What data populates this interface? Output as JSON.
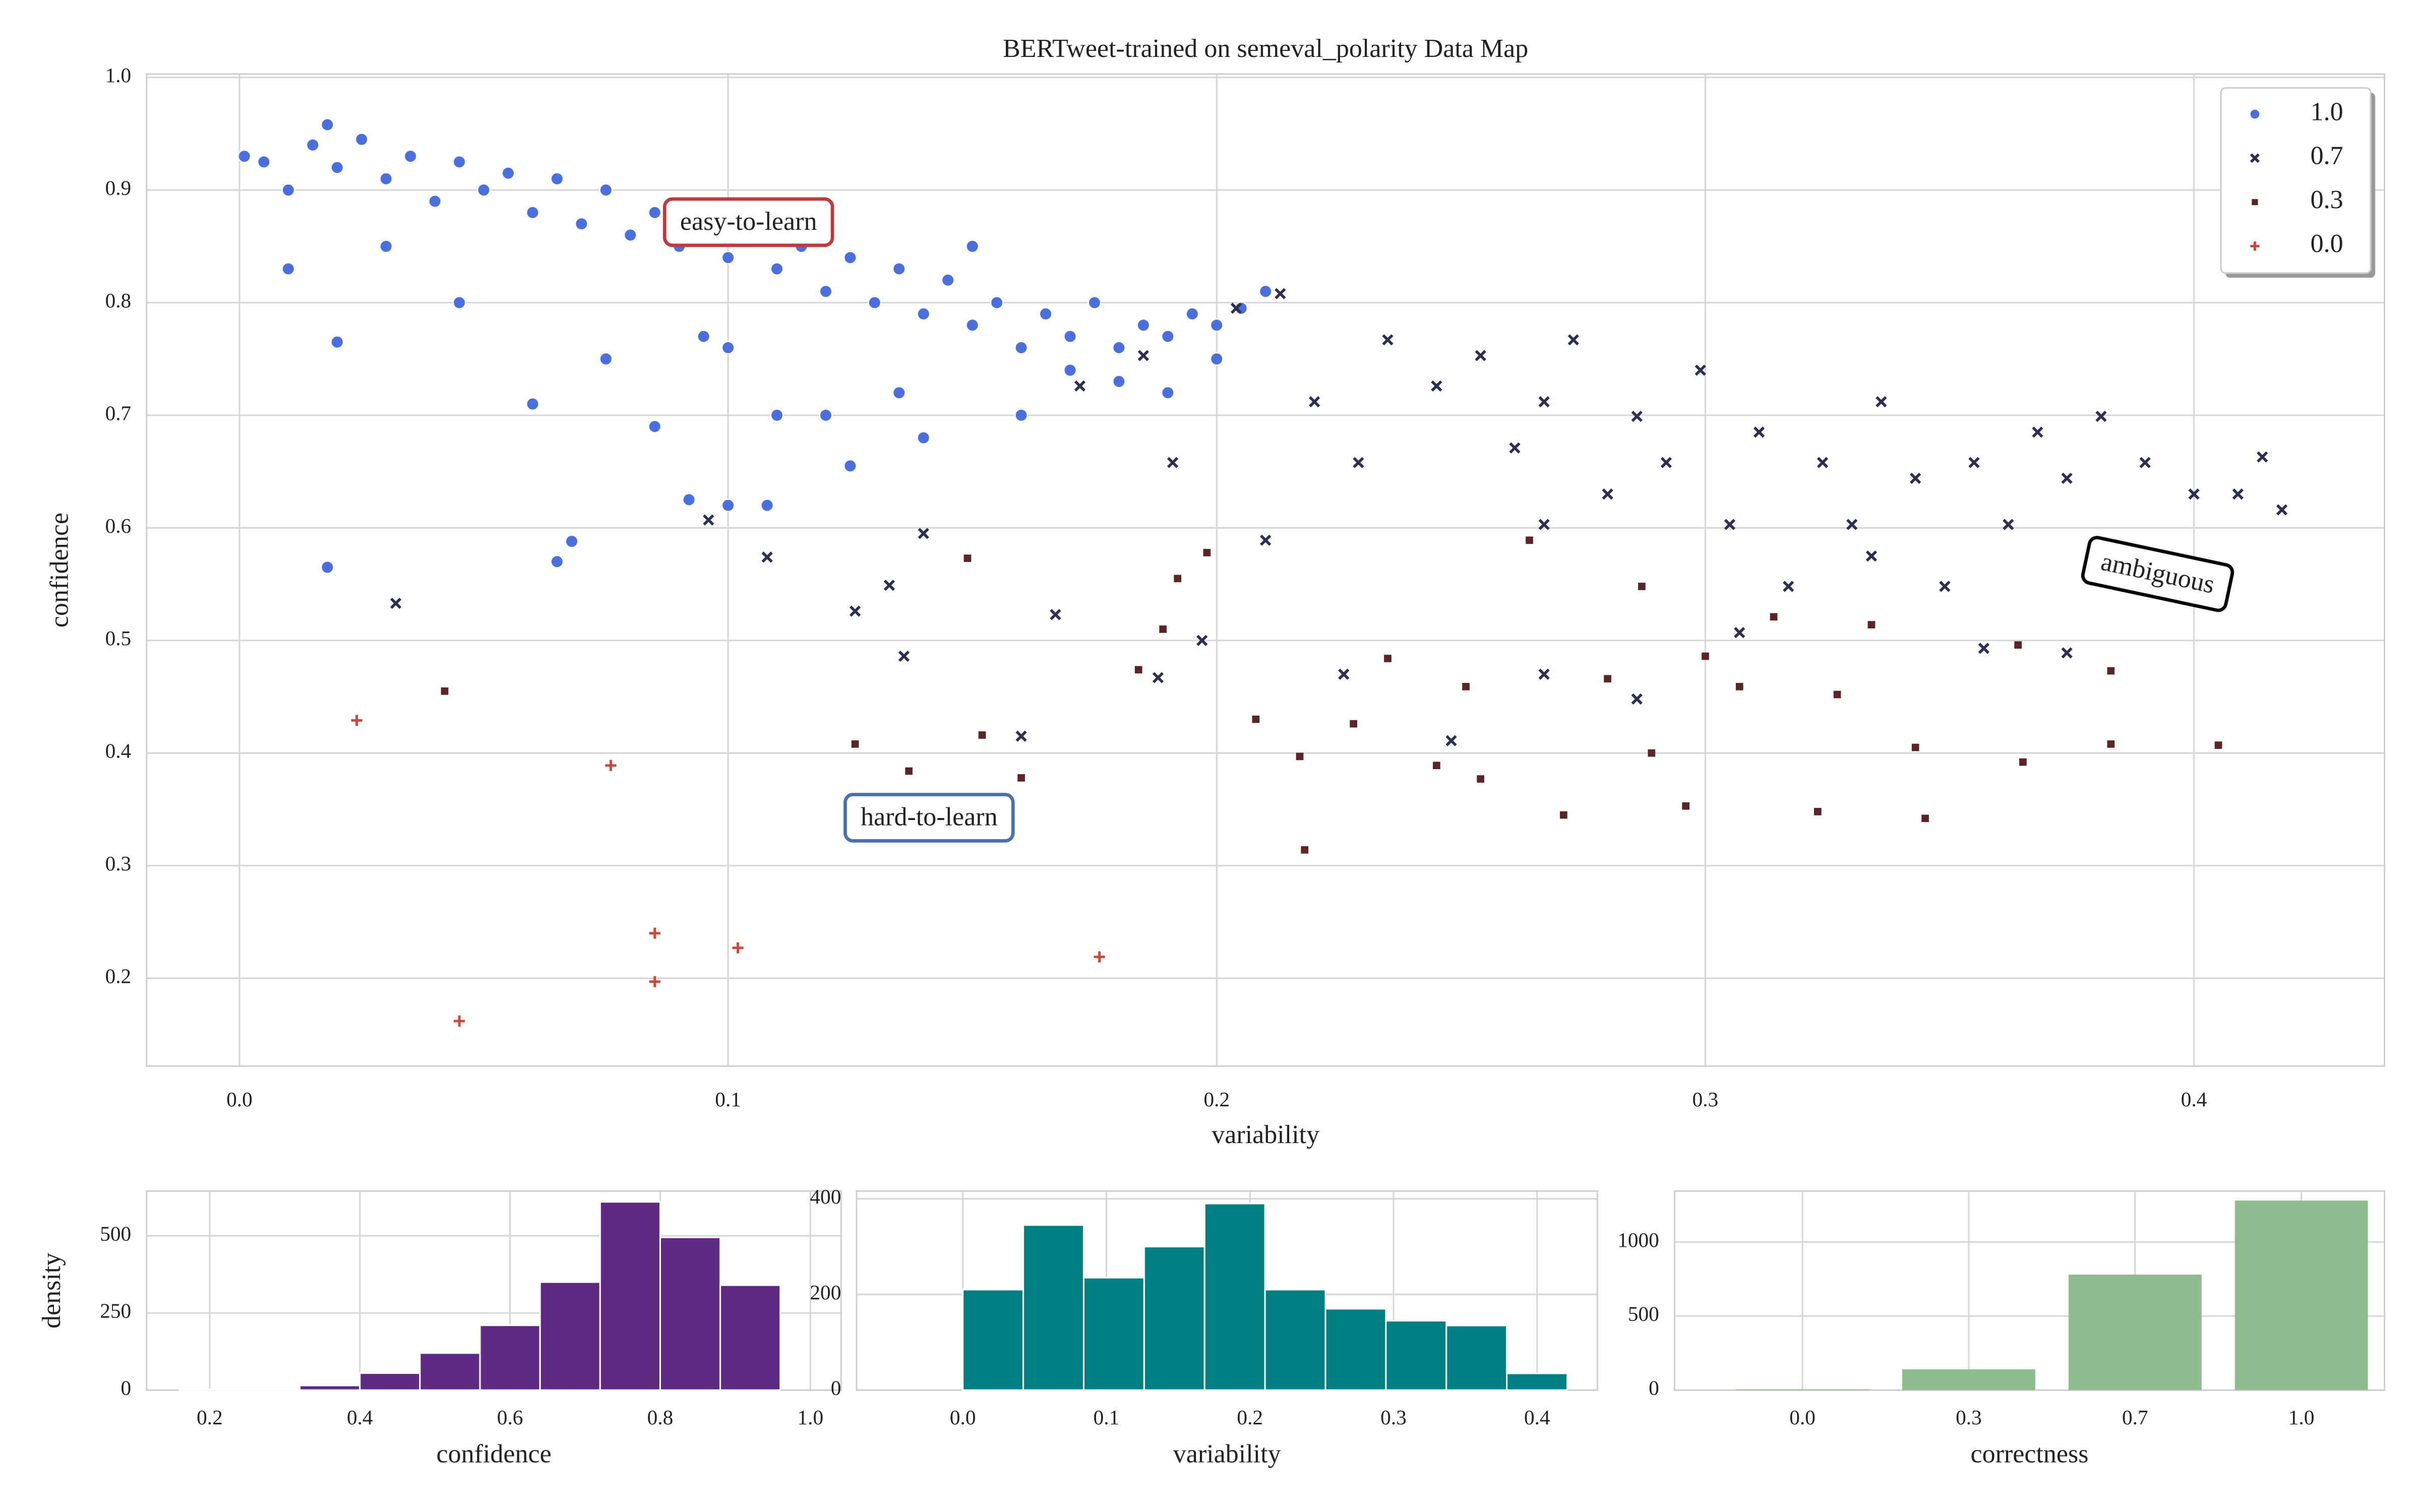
{
  "chart_data": [
    {
      "type": "scatter",
      "title": "BERTweet-trained on semeval_polarity Data Map",
      "x_label": "variability",
      "y_label": "confidence",
      "xlim": [
        -0.019,
        0.439
      ],
      "ylim": [
        0.122,
        1.003
      ],
      "xticks": [
        {
          "value": 0,
          "label": "0.0"
        },
        0.1,
        0.2,
        0.3,
        0.4
      ],
      "yticks": [
        0.2,
        0.3,
        0.4,
        0.5,
        0.6,
        0.7,
        0.8,
        0.9,
        {
          "value": 1,
          "label": "1.0"
        }
      ],
      "grid": true,
      "legend": "upper right",
      "annotations": [
        {
          "text": "easy-to-learn",
          "color": "#c0393b"
        },
        {
          "text": "hard-to-learn",
          "color": "#4a6fb5"
        },
        {
          "text": "ambiguous",
          "color": "#000000"
        }
      ],
      "series": [
        {
          "name": "1.0",
          "marker": "circle",
          "color": "#4a6fde",
          "x": [
            0.001,
            0.005,
            0.01,
            0.015,
            0.018,
            0.02,
            0.025,
            0.03,
            0.035,
            0.04,
            0.045,
            0.05,
            0.055,
            0.06,
            0.065,
            0.07,
            0.075,
            0.08,
            0.085,
            0.09,
            0.095,
            0.1,
            0.105,
            0.11,
            0.115,
            0.12,
            0.125,
            0.13,
            0.135,
            0.14,
            0.145,
            0.15,
            0.155,
            0.16,
            0.165,
            0.17,
            0.175,
            0.18,
            0.185,
            0.19,
            0.195,
            0.2,
            0.205,
            0.21,
            0.15,
            0.03,
            0.045,
            0.02,
            0.018,
            0.065,
            0.068,
            0.06,
            0.085,
            0.092,
            0.1,
            0.108,
            0.11,
            0.125,
            0.14,
            0.16,
            0.18,
            0.17,
            0.01,
            0.1,
            0.075,
            0.12,
            0.095,
            0.135,
            0.19,
            0.2
          ],
          "y": [
            0.93,
            0.925,
            0.9,
            0.94,
            0.958,
            0.92,
            0.945,
            0.91,
            0.93,
            0.89,
            0.925,
            0.9,
            0.915,
            0.88,
            0.91,
            0.87,
            0.9,
            0.86,
            0.88,
            0.85,
            0.87,
            0.84,
            0.86,
            0.83,
            0.85,
            0.81,
            0.84,
            0.8,
            0.83,
            0.79,
            0.82,
            0.78,
            0.8,
            0.76,
            0.79,
            0.77,
            0.8,
            0.76,
            0.78,
            0.77,
            0.79,
            0.78,
            0.795,
            0.81,
            0.85,
            0.85,
            0.8,
            0.765,
            0.565,
            0.57,
            0.588,
            0.71,
            0.69,
            0.625,
            0.62,
            0.62,
            0.7,
            0.655,
            0.68,
            0.7,
            0.73,
            0.74,
            0.83,
            0.76,
            0.75,
            0.7,
            0.77,
            0.72,
            0.72,
            0.75
          ]
        },
        {
          "name": "0.7",
          "marker": "x",
          "color": "#2b2f52",
          "x": [
            0.032,
            0.096,
            0.108,
            0.126,
            0.133,
            0.136,
            0.14,
            0.16,
            0.167,
            0.188,
            0.197,
            0.172,
            0.185,
            0.204,
            0.213,
            0.22,
            0.229,
            0.235,
            0.245,
            0.254,
            0.261,
            0.267,
            0.273,
            0.28,
            0.286,
            0.292,
            0.299,
            0.305,
            0.311,
            0.317,
            0.324,
            0.33,
            0.336,
            0.343,
            0.349,
            0.355,
            0.362,
            0.368,
            0.374,
            0.381,
            0.39,
            0.4,
            0.409,
            0.418,
            0.414,
            0.248,
            0.226,
            0.286,
            0.267,
            0.357,
            0.374,
            0.21,
            0.191,
            0.267,
            0.307,
            0.334
          ],
          "y": [
            0.533,
            0.607,
            0.574,
            0.526,
            0.549,
            0.486,
            0.595,
            0.415,
            0.523,
            0.467,
            0.5,
            0.726,
            0.753,
            0.795,
            0.808,
            0.712,
            0.658,
            0.767,
            0.726,
            0.753,
            0.671,
            0.712,
            0.767,
            0.63,
            0.699,
            0.658,
            0.74,
            0.603,
            0.685,
            0.548,
            0.658,
            0.603,
            0.712,
            0.644,
            0.548,
            0.658,
            0.603,
            0.685,
            0.644,
            0.699,
            0.658,
            0.63,
            0.63,
            0.616,
            0.663,
            0.411,
            0.47,
            0.448,
            0.47,
            0.493,
            0.489,
            0.589,
            0.658,
            0.603,
            0.507,
            0.575
          ]
        },
        {
          "name": "0.3",
          "marker": "square",
          "color": "#5a2524",
          "x": [
            0.042,
            0.126,
            0.137,
            0.152,
            0.16,
            0.149,
            0.184,
            0.189,
            0.198,
            0.208,
            0.217,
            0.218,
            0.228,
            0.235,
            0.245,
            0.254,
            0.271,
            0.289,
            0.296,
            0.3,
            0.314,
            0.323,
            0.345,
            0.343,
            0.364,
            0.365,
            0.383,
            0.383,
            0.405,
            0.28,
            0.327,
            0.334,
            0.264,
            0.287,
            0.307,
            0.251,
            0.192
          ],
          "y": [
            0.455,
            0.408,
            0.384,
            0.416,
            0.378,
            0.573,
            0.474,
            0.51,
            0.578,
            0.43,
            0.397,
            0.314,
            0.426,
            0.484,
            0.389,
            0.377,
            0.345,
            0.4,
            0.353,
            0.486,
            0.521,
            0.348,
            0.342,
            0.405,
            0.496,
            0.392,
            0.473,
            0.408,
            0.407,
            0.466,
            0.452,
            0.514,
            0.589,
            0.548,
            0.459,
            0.459,
            0.555
          ]
        },
        {
          "name": "0.0",
          "marker": "plus",
          "color": "#d0453a",
          "x": [
            0.024,
            0.076,
            0.085,
            0.085,
            0.102,
            0.045,
            0.176
          ],
          "y": [
            0.429,
            0.389,
            0.24,
            0.197,
            0.227,
            0.162,
            0.219
          ]
        }
      ]
    },
    {
      "type": "histogram",
      "x_label": "confidence",
      "y_label": "density",
      "color": "#5e2a84",
      "xlim": [
        0.116,
        1.041
      ],
      "ylim": [
        0,
        645
      ],
      "xticks": [
        0.2,
        0.4,
        0.6,
        0.8,
        {
          "value": 1,
          "label": "1.0"
        }
      ],
      "yticks": [
        0,
        250,
        500
      ],
      "grid": true,
      "bins": [
        0.16,
        0.24,
        0.32,
        0.4,
        0.48,
        0.56,
        0.64,
        0.72,
        0.8,
        0.88,
        0.96
      ],
      "values": [
        3,
        2,
        15,
        55,
        120,
        210,
        350,
        610,
        495,
        340
      ]
    },
    {
      "type": "histogram",
      "x_label": "variability",
      "color": "#008080",
      "xlim": [
        -0.074,
        0.442
      ],
      "ylim": [
        0,
        416
      ],
      "xticks": [
        {
          "value": 0,
          "label": "0.0"
        },
        0.1,
        0.2,
        0.3,
        0.4
      ],
      "yticks": [
        0,
        200,
        400
      ],
      "grid": true,
      "bins": [
        0,
        0.0421,
        0.0842,
        0.1263,
        0.1684,
        0.2105,
        0.2526,
        0.2947,
        0.3368,
        0.3789,
        0.421
      ],
      "values": [
        210,
        345,
        235,
        300,
        390,
        210,
        170,
        145,
        135,
        35
      ]
    },
    {
      "type": "bar",
      "x_label": "correctness",
      "color": "#8fbc8f",
      "ylim": [
        0,
        1344
      ],
      "yticks": [
        0,
        500,
        1000
      ],
      "grid": true,
      "categories": [
        "0.0",
        "0.3",
        "0.7",
        "1.0"
      ],
      "values": [
        5,
        140,
        780,
        1280
      ]
    }
  ]
}
